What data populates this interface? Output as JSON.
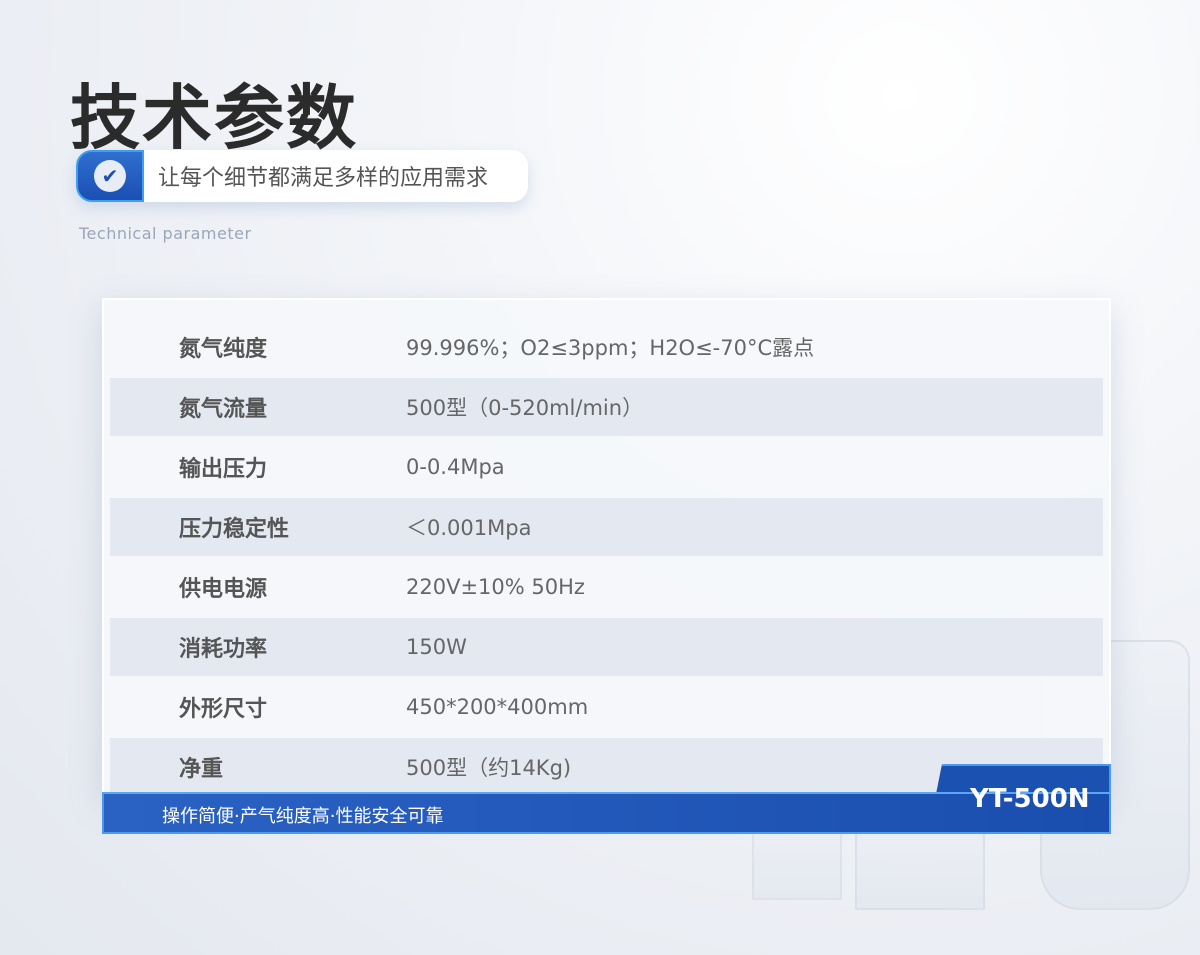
{
  "header": {
    "title": "技术参数",
    "subtitle": "让每个细节都满足多样的应用需求",
    "subtitle_en": "Technical parameter",
    "check_icon": "check-circle-icon"
  },
  "specs": [
    {
      "label": "氮气纯度",
      "value": "99.996%；O2≤3ppm；H2O≤-70°C露点"
    },
    {
      "label": "氮气流量",
      "value": "500型（0-520ml/min）"
    },
    {
      "label": "输出压力",
      "value": "0-0.4Mpa"
    },
    {
      "label": "压力稳定性",
      "value": "＜0.001Mpa"
    },
    {
      "label": "供电电源",
      "value": "220V±10%  50Hz"
    },
    {
      "label": "消耗功率",
      "value": "150W"
    },
    {
      "label": "外形尺寸",
      "value": "450*200*400mm"
    },
    {
      "label": "净重",
      "value": "500型（约14Kg)"
    }
  ],
  "footer": {
    "tagline": "操作简便·产气纯度高·性能安全可靠",
    "model": "YT-500N"
  },
  "colors": {
    "accent": "#1b52b2",
    "highlight": "#4a9af0"
  }
}
